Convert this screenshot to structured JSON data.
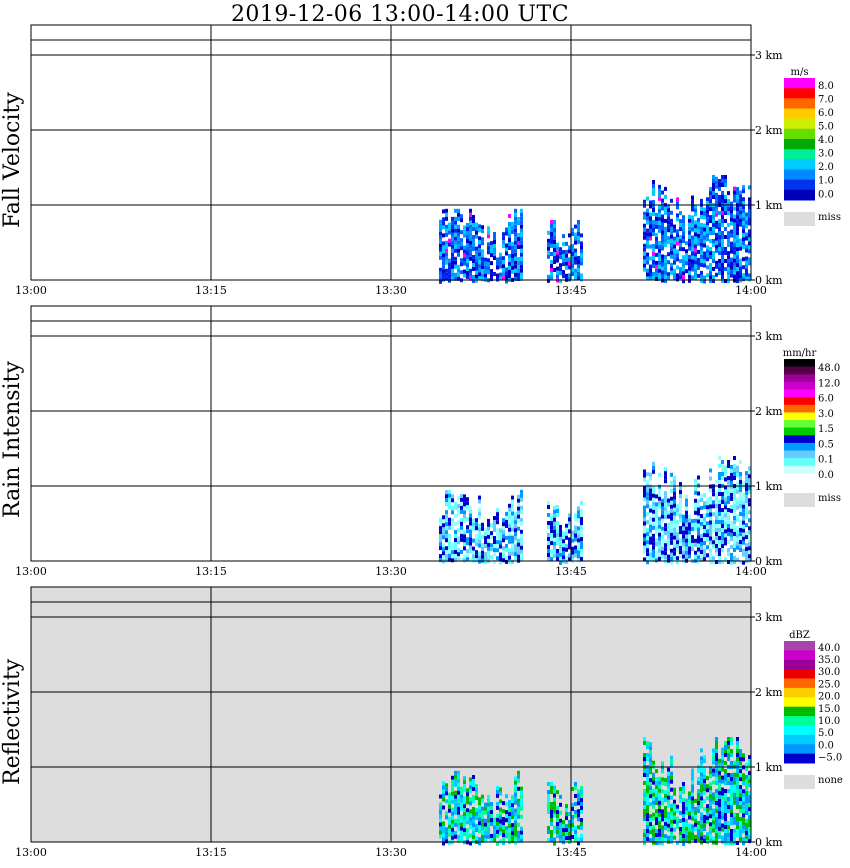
{
  "title": "2019-12-06   13:00-14:00 UTC",
  "x_ticks": [
    "13:00",
    "13:15",
    "13:30",
    "13:45",
    "14:00"
  ],
  "y_ticks": [
    "0 km",
    "1 km",
    "2 km",
    "3 km"
  ],
  "panels": [
    {
      "label": "Fall Velocity",
      "unit": "m/s",
      "legend": [
        "8.0",
        "7.0",
        "6.0",
        "5.0",
        "4.0",
        "3.0",
        "2.0",
        "1.0",
        "0.0"
      ],
      "legend_colors": [
        "#ff00ff",
        "#ff0000",
        "#ff6600",
        "#ffcc00",
        "#ccee00",
        "#66dd00",
        "#00aa00",
        "#00ee99",
        "#00ccff",
        "#0088ff",
        "#0033ee",
        "#0000bb"
      ],
      "miss_label": "miss",
      "background": "#ffffff"
    },
    {
      "label": "Rain Intensity",
      "unit": "mm/hr",
      "legend": [
        "48.0",
        "12.0",
        "6.0",
        "3.0",
        "1.5",
        "0.5",
        "0.1",
        "0.0"
      ],
      "legend_colors": [
        "#000000",
        "#550044",
        "#990099",
        "#cc00cc",
        "#ff00ff",
        "#ff0000",
        "#ff6600",
        "#ffff00",
        "#66ff33",
        "#00cc00",
        "#0000cc",
        "#0099ff",
        "#66ccff",
        "#66ffff",
        "#ccffff",
        "#ffffff"
      ],
      "miss_label": "miss",
      "background": "#ffffff"
    },
    {
      "label": "Reflectivity",
      "unit": "dBZ",
      "legend": [
        "40.0",
        "35.0",
        "30.0",
        "25.0",
        "20.0",
        "15.0",
        "10.0",
        "5.0",
        "0.0",
        "−5.0"
      ],
      "legend_colors": [
        "#aa44aa",
        "#cc00cc",
        "#990099",
        "#ee0000",
        "#ff6600",
        "#ffcc00",
        "#ffff00",
        "#00bb00",
        "#00ff99",
        "#00ffff",
        "#00ccff",
        "#0099ff",
        "#0000cc"
      ],
      "miss_label": "none",
      "background": "#dddddd"
    }
  ],
  "chart_data": [
    {
      "type": "heatmap",
      "title": "Fall Velocity",
      "x_range": [
        "13:00",
        "14:00"
      ],
      "y_range_km": [
        0,
        3.4
      ],
      "colorbar_unit": "m/s",
      "echo_clusters": [
        {
          "start": "13:34",
          "end": "13:41",
          "top_km": 0.95,
          "value_range": [
            0.0,
            3.0
          ]
        },
        {
          "start": "13:43",
          "end": "13:46",
          "top_km": 0.8,
          "value_range": [
            0.0,
            2.0
          ]
        },
        {
          "start": "13:51",
          "end": "14:00",
          "top_km": 1.4,
          "value_range": [
            0.0,
            8.0
          ]
        }
      ]
    },
    {
      "type": "heatmap",
      "title": "Rain Intensity",
      "x_range": [
        "13:00",
        "14:00"
      ],
      "y_range_km": [
        0,
        3.4
      ],
      "colorbar_unit": "mm/hr",
      "echo_clusters": [
        {
          "start": "13:34",
          "end": "13:41",
          "top_km": 0.95,
          "value_range": [
            0.0,
            0.5
          ]
        },
        {
          "start": "13:43",
          "end": "13:46",
          "top_km": 0.8,
          "value_range": [
            0.0,
            0.1
          ]
        },
        {
          "start": "13:51",
          "end": "14:00",
          "top_km": 1.4,
          "value_range": [
            0.0,
            0.5
          ]
        }
      ]
    },
    {
      "type": "heatmap",
      "title": "Reflectivity",
      "x_range": [
        "13:00",
        "14:00"
      ],
      "y_range_km": [
        0,
        3.4
      ],
      "colorbar_unit": "dBZ",
      "echo_clusters": [
        {
          "start": "13:34",
          "end": "13:41",
          "top_km": 0.95,
          "value_range": [
            -5.0,
            15.0
          ]
        },
        {
          "start": "13:43",
          "end": "13:46",
          "top_km": 0.8,
          "value_range": [
            -5.0,
            5.0
          ]
        },
        {
          "start": "13:51",
          "end": "14:00",
          "top_km": 1.4,
          "value_range": [
            -5.0,
            15.0
          ]
        }
      ]
    }
  ]
}
